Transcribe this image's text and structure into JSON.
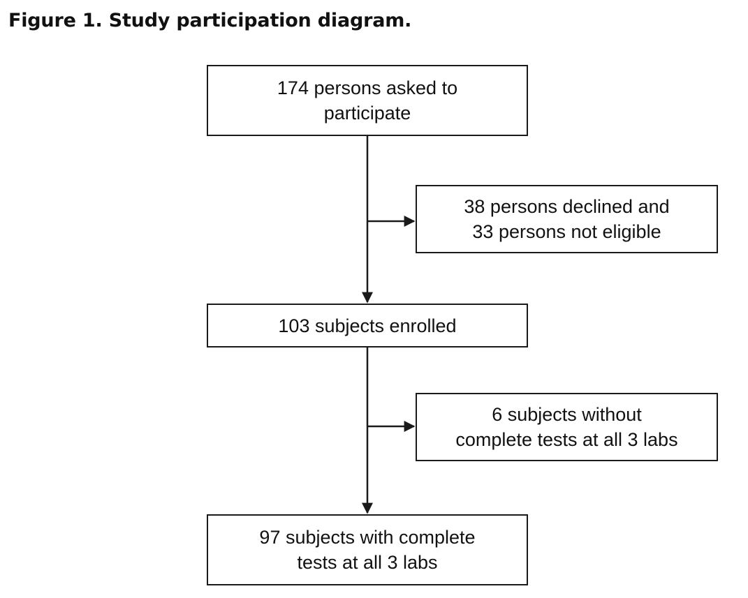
{
  "figure": {
    "title": "Figure 1. Study participation diagram."
  },
  "flow": {
    "asked": {
      "line1": "174 persons asked to",
      "line2": "participate"
    },
    "excluded_initial": {
      "line1": "38 persons declined and",
      "line2": "33 persons not eligible"
    },
    "enrolled": {
      "line1": "103 subjects enrolled"
    },
    "excluded_incomplete": {
      "line1": "6 subjects without",
      "line2": "complete tests at all 3 labs"
    },
    "completed": {
      "line1": "97 subjects with complete",
      "line2": "tests at all 3 labs"
    }
  },
  "colors": {
    "line": "#1a1a1a",
    "text": "#111111",
    "background": "#ffffff"
  }
}
